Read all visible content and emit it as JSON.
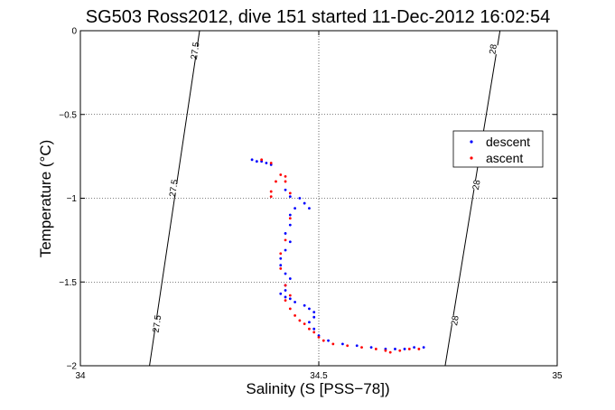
{
  "chart_data": {
    "type": "scatter",
    "title": "SG503 Ross2012, dive 151 started 11-Dec-2012 16:02:54",
    "xlabel": "Salinity (S [PSS−78])",
    "ylabel": "Temperature (°C)",
    "xlim": [
      34,
      35
    ],
    "ylim": [
      -2,
      0
    ],
    "xticks": [
      34,
      34.5,
      35
    ],
    "xtick_labels": [
      "34",
      "34.5",
      "35"
    ],
    "yticks": [
      0,
      -0.5,
      -1,
      -1.5,
      -2
    ],
    "ytick_labels": [
      "0",
      "−0.5",
      "−1",
      "−1.5",
      "−2"
    ],
    "grid": true,
    "legend_position": "right-middle",
    "series": [
      {
        "name": "descent",
        "color": "#0000ff",
        "points": [
          [
            34.36,
            -0.77
          ],
          [
            34.37,
            -0.78
          ],
          [
            34.38,
            -0.78
          ],
          [
            34.39,
            -0.79
          ],
          [
            34.4,
            -0.8
          ],
          [
            34.43,
            -0.95
          ],
          [
            34.44,
            -0.99
          ],
          [
            34.46,
            -1.0
          ],
          [
            34.47,
            -1.03
          ],
          [
            34.48,
            -1.06
          ],
          [
            34.45,
            -1.06
          ],
          [
            34.44,
            -1.1
          ],
          [
            34.44,
            -1.16
          ],
          [
            34.43,
            -1.21
          ],
          [
            34.44,
            -1.26
          ],
          [
            34.43,
            -1.31
          ],
          [
            34.42,
            -1.36
          ],
          [
            34.42,
            -1.4
          ],
          [
            34.43,
            -1.45
          ],
          [
            34.44,
            -1.48
          ],
          [
            34.43,
            -1.52
          ],
          [
            34.43,
            -1.55
          ],
          [
            34.42,
            -1.57
          ],
          [
            34.43,
            -1.59
          ],
          [
            34.44,
            -1.6
          ],
          [
            34.45,
            -1.62
          ],
          [
            34.47,
            -1.64
          ],
          [
            34.48,
            -1.66
          ],
          [
            34.49,
            -1.68
          ],
          [
            34.49,
            -1.71
          ],
          [
            34.48,
            -1.74
          ],
          [
            34.49,
            -1.78
          ],
          [
            34.5,
            -1.82
          ],
          [
            34.52,
            -1.85
          ],
          [
            34.55,
            -1.87
          ],
          [
            34.58,
            -1.88
          ],
          [
            34.61,
            -1.89
          ],
          [
            34.64,
            -1.9
          ],
          [
            34.66,
            -1.9
          ],
          [
            34.68,
            -1.9
          ],
          [
            34.7,
            -1.89
          ],
          [
            34.72,
            -1.89
          ]
        ]
      },
      {
        "name": "ascent",
        "color": "#ff0000",
        "points": [
          [
            34.38,
            -0.77
          ],
          [
            34.4,
            -0.79
          ],
          [
            34.42,
            -0.86
          ],
          [
            34.43,
            -0.87
          ],
          [
            34.43,
            -0.9
          ],
          [
            34.41,
            -0.9
          ],
          [
            34.4,
            -0.96
          ],
          [
            34.4,
            -0.99
          ],
          [
            34.44,
            -0.97
          ],
          [
            34.44,
            -1.12
          ],
          [
            34.43,
            -1.25
          ],
          [
            34.42,
            -1.33
          ],
          [
            34.42,
            -1.42
          ],
          [
            34.43,
            -1.52
          ],
          [
            34.44,
            -1.58
          ],
          [
            34.43,
            -1.61
          ],
          [
            34.44,
            -1.66
          ],
          [
            34.45,
            -1.7
          ],
          [
            34.46,
            -1.73
          ],
          [
            34.47,
            -1.75
          ],
          [
            34.48,
            -1.78
          ],
          [
            34.49,
            -1.8
          ],
          [
            34.5,
            -1.83
          ],
          [
            34.51,
            -1.85
          ],
          [
            34.53,
            -1.87
          ],
          [
            34.56,
            -1.88
          ],
          [
            34.59,
            -1.89
          ],
          [
            34.62,
            -1.9
          ],
          [
            34.64,
            -1.91
          ],
          [
            34.65,
            -1.92
          ],
          [
            34.67,
            -1.91
          ],
          [
            34.69,
            -1.9
          ],
          [
            34.71,
            -1.9
          ]
        ]
      }
    ],
    "isopycnals": [
      {
        "label": "27.5",
        "points": [
          [
            34.145,
            -2
          ],
          [
            34.25,
            0
          ]
        ],
        "label_positions": [
          [
            34.24,
            -0.12
          ],
          [
            34.195,
            -0.94
          ],
          [
            34.16,
            -1.75
          ]
        ]
      },
      {
        "label": "28",
        "points": [
          [
            34.765,
            -2
          ],
          [
            34.88,
            0
          ]
        ],
        "label_positions": [
          [
            34.865,
            -0.11
          ],
          [
            34.83,
            -0.92
          ],
          [
            34.785,
            -1.73
          ]
        ]
      }
    ]
  }
}
